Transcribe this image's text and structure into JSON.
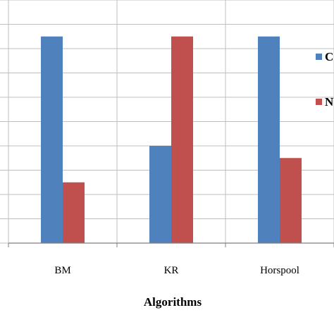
{
  "chart_data": {
    "type": "bar",
    "categories": [
      "BM",
      "KR",
      "Horspool"
    ],
    "series": [
      {
        "name": "C",
        "color": "#4F81BD",
        "values": [
          8.5,
          4,
          8.5
        ]
      },
      {
        "name": "N",
        "color": "#C0504D",
        "values": [
          2.5,
          8.5,
          3.5
        ]
      }
    ],
    "title": "",
    "xlabel": "Algorithms",
    "ylabel": "",
    "ylim": [
      0,
      10
    ],
    "y_step": 1,
    "grid": true,
    "legend_position": "right"
  }
}
